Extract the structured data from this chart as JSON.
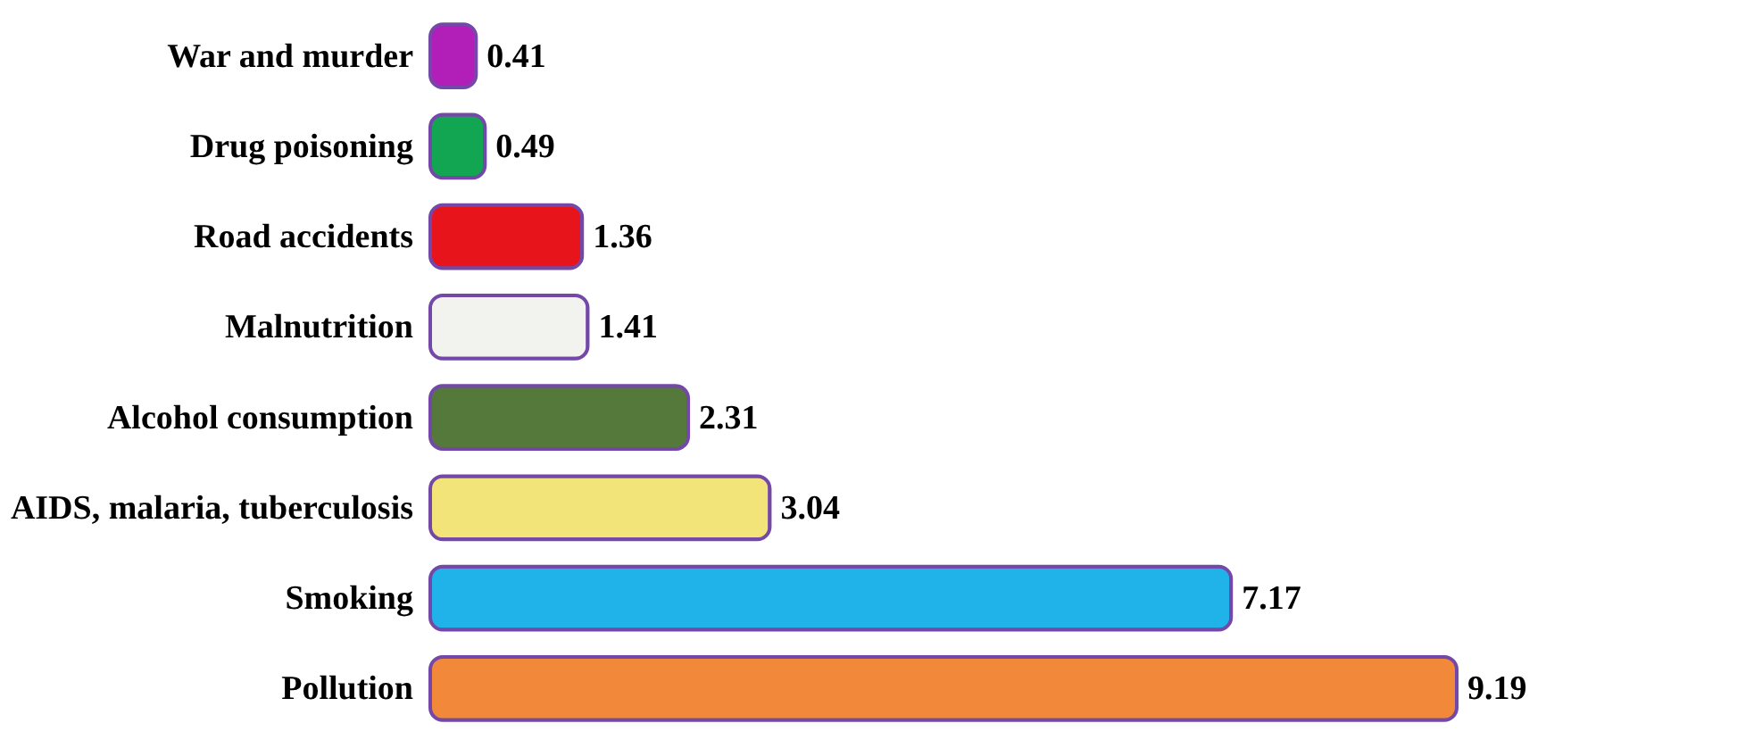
{
  "chart_data": {
    "type": "bar",
    "orientation": "horizontal",
    "data_labels": true,
    "categories": [
      "War and murder",
      "Drug poisoning",
      "Road accidents",
      "Malnutrition",
      "Alcohol consumption",
      "AIDS, malaria, tuberculosis",
      "Smoking",
      "Pollution"
    ],
    "values": [
      0.41,
      0.49,
      1.36,
      1.41,
      2.31,
      3.04,
      7.17,
      9.19
    ],
    "colors": [
      "#b21fb8",
      "#12a552",
      "#e8141c",
      "#f2f2ee",
      "#55793a",
      "#f3e47a",
      "#1fb3ea",
      "#f2883a"
    ]
  }
}
